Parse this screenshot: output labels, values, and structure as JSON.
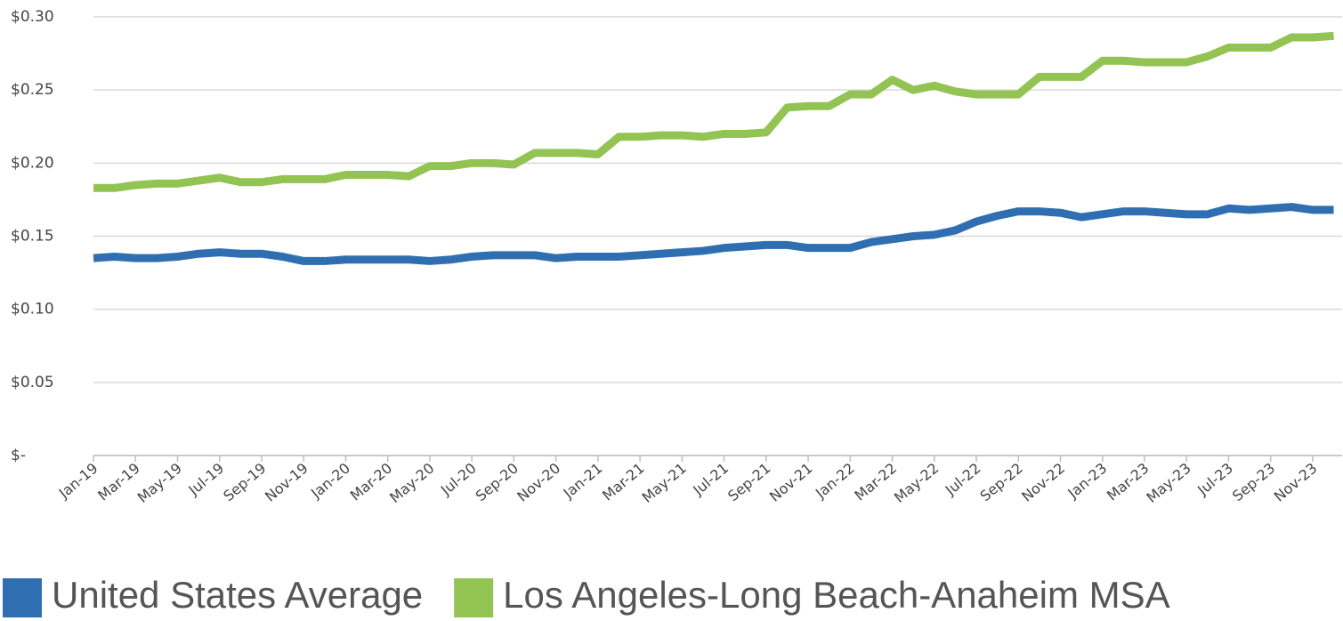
{
  "chart_data": {
    "type": "line",
    "categories": [
      "Jan-19",
      null,
      "Mar-19",
      null,
      "May-19",
      null,
      "Jul-19",
      null,
      "Sep-19",
      null,
      "Nov-19",
      null,
      "Jan-20",
      null,
      "Mar-20",
      null,
      "May-20",
      null,
      "Jul-20",
      null,
      "Sep-20",
      null,
      "Nov-20",
      null,
      "Jan-21",
      null,
      "Mar-21",
      null,
      "May-21",
      null,
      "Jul-21",
      null,
      "Sep-21",
      null,
      "Nov-21",
      null,
      "Jan-22",
      null,
      "Mar-22",
      null,
      "May-22",
      null,
      "Jul-22",
      null,
      "Sep-22",
      null,
      "Nov-22",
      null,
      "Jan-23",
      null,
      "Mar-23",
      null,
      "May-23",
      null,
      "Jul-23",
      null,
      "Sep-23",
      null,
      "Nov-23",
      null
    ],
    "series": [
      {
        "name": "United States Average",
        "color": "#2f6fb1",
        "values": [
          0.135,
          0.136,
          0.135,
          0.135,
          0.136,
          0.138,
          0.139,
          0.138,
          0.138,
          0.136,
          0.133,
          0.133,
          0.134,
          0.134,
          0.134,
          0.134,
          0.133,
          0.134,
          0.136,
          0.137,
          0.137,
          0.137,
          0.135,
          0.136,
          0.136,
          0.136,
          0.137,
          0.138,
          0.139,
          0.14,
          0.142,
          0.143,
          0.144,
          0.144,
          0.142,
          0.142,
          0.142,
          0.146,
          0.148,
          0.15,
          0.151,
          0.154,
          0.16,
          0.164,
          0.167,
          0.167,
          0.166,
          0.163,
          0.165,
          0.167,
          0.167,
          0.166,
          0.165,
          0.165,
          0.169,
          0.168,
          0.169,
          0.17,
          0.168,
          0.168
        ]
      },
      {
        "name": "Los Angeles-Long Beach-Anaheim MSA",
        "color": "#92c353",
        "values": [
          0.183,
          0.183,
          0.185,
          0.186,
          0.186,
          0.188,
          0.19,
          0.187,
          0.187,
          0.189,
          0.189,
          0.189,
          0.192,
          0.192,
          0.192,
          0.191,
          0.198,
          0.198,
          0.2,
          0.2,
          0.199,
          0.207,
          0.207,
          0.207,
          0.206,
          0.218,
          0.218,
          0.219,
          0.219,
          0.218,
          0.22,
          0.22,
          0.221,
          0.238,
          0.239,
          0.239,
          0.247,
          0.247,
          0.257,
          0.25,
          0.253,
          0.249,
          0.247,
          0.247,
          0.247,
          0.259,
          0.259,
          0.259,
          0.27,
          0.27,
          0.269,
          0.269,
          0.269,
          0.273,
          0.279,
          0.279,
          0.279,
          0.286,
          0.286,
          0.287
        ]
      }
    ],
    "ylim": [
      0,
      0.3
    ],
    "yticks": [
      {
        "value": 0,
        "label": "$-"
      },
      {
        "value": 0.05,
        "label": "$0.05"
      },
      {
        "value": 0.1,
        "label": "$0.10"
      },
      {
        "value": 0.15,
        "label": "$0.15"
      },
      {
        "value": 0.2,
        "label": "$0.20"
      },
      {
        "value": 0.25,
        "label": "$0.25"
      },
      {
        "value": 0.3,
        "label": "$0.30"
      }
    ],
    "grid": true,
    "legend": "bottom"
  }
}
